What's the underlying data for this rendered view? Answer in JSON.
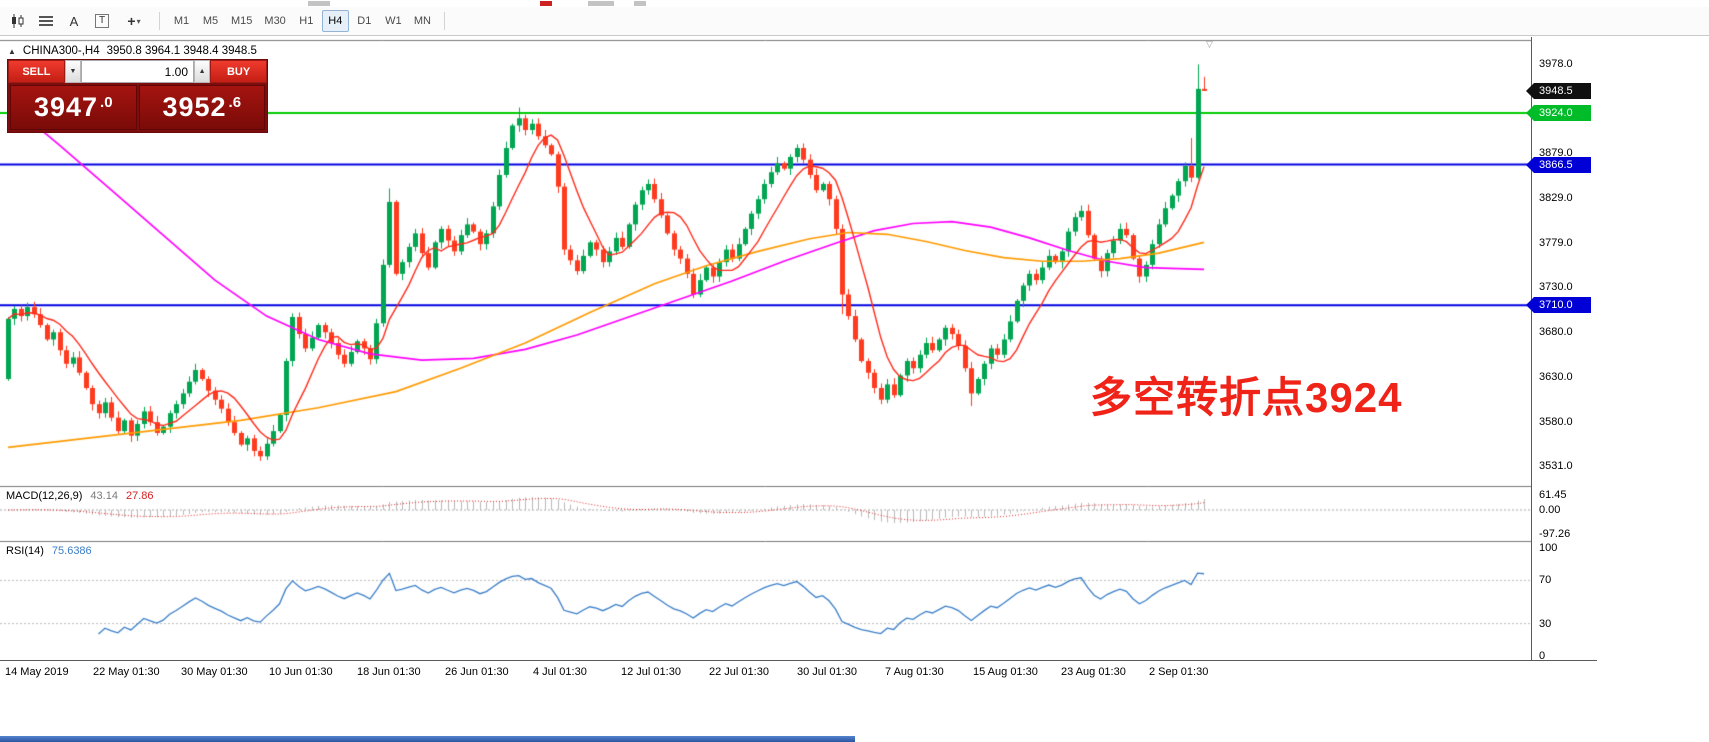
{
  "toolbar": {
    "timeframes": [
      "M1",
      "M5",
      "M15",
      "M30",
      "H1",
      "H4",
      "D1",
      "W1",
      "MN"
    ],
    "active_timeframe": "H4",
    "icon_glyphs": [
      "A",
      "T",
      "+",
      "▾"
    ]
  },
  "chart": {
    "collapse_icon": "▲",
    "symbol": "CHINA300-,H4",
    "ohlc": "3950.8 3964.1 3948.4 3948.5",
    "shift_marker": "▽"
  },
  "trade_panel": {
    "sell_label": "SELL",
    "buy_label": "BUY",
    "volume": "1.00",
    "vol_down_glyph": "▼",
    "vol_up_glyph": "▲",
    "sell_price_main": "3947",
    "sell_price_frac": ".0",
    "buy_price_main": "3952",
    "buy_price_frac": ".6"
  },
  "annotation": {
    "text": "多空转折点3924",
    "color": "#ef2318"
  },
  "price_axis": {
    "ticks": [
      "3978.0",
      "3879.0",
      "3829.0",
      "3779.0",
      "3730.0",
      "3680.0",
      "3630.0",
      "3580.0",
      "3531.0"
    ],
    "badges": {
      "current": "3948.5",
      "level_green": "3924.0",
      "level_blue_1": "3866.5",
      "level_blue_2": "3710.0"
    }
  },
  "hlines": [
    {
      "price": 3924.0,
      "color": "#00cc00"
    },
    {
      "price": 3866.5,
      "color": "#0000e0"
    },
    {
      "price": 3710.0,
      "color": "#0000e0"
    }
  ],
  "indicators": {
    "macd": {
      "label": "MACD(12,26,9)",
      "value_main": "43.14",
      "value_signal": "27.86",
      "axis": [
        "61.45",
        "0.00",
        "-97.26"
      ],
      "axis_values": [
        61.45,
        0,
        -97.26
      ]
    },
    "rsi": {
      "label": "RSI(14)",
      "value": "75.6386",
      "period": 14,
      "axis": [
        "100",
        "70",
        "30",
        "0"
      ],
      "axis_values": [
        100,
        70,
        30,
        0
      ],
      "levels": [
        70,
        30
      ]
    }
  },
  "time_axis": {
    "labels": [
      "14 May 2019",
      "22 May 01:30",
      "30 May 01:30",
      "10 Jun 01:30",
      "18 Jun 01:30",
      "26 Jun 01:30",
      "4 Jul 01:30",
      "12 Jul 01:30",
      "22 Jul 01:30",
      "30 Jul 01:30",
      "7 Aug 01:30",
      "15 Aug 01:30",
      "23 Aug 01:30",
      "2 Sep 01:30"
    ]
  },
  "chart_data": {
    "type": "candlestick",
    "symbol": "CHINA300-",
    "timeframe": "H4",
    "current_bar": {
      "open": 3950.8,
      "high": 3964.1,
      "low": 3948.4,
      "close": 3948.5
    },
    "price_range": {
      "min": 3509,
      "max": 4004
    },
    "colors": {
      "up": "#00a651",
      "down": "#ff3b1f",
      "macd_hist": "#b9b9b9",
      "macd_signal": "#e02020",
      "rsi_line": "#3a7ec8"
    },
    "open_first": 3628,
    "closes": [
      3695,
      3706,
      3698,
      3708,
      3700,
      3688,
      3672,
      3680,
      3660,
      3645,
      3652,
      3635,
      3618,
      3600,
      3590,
      3602,
      3585,
      3570,
      3582,
      3565,
      3578,
      3592,
      3580,
      3568,
      3575,
      3590,
      3600,
      3612,
      3625,
      3638,
      3628,
      3615,
      3605,
      3595,
      3580,
      3568,
      3555,
      3562,
      3548,
      3542,
      3556,
      3570,
      3588,
      3648,
      3697,
      3678,
      3662,
      3674,
      3688,
      3680,
      3668,
      3655,
      3645,
      3658,
      3670,
      3662,
      3650,
      3690,
      3755,
      3825,
      3745,
      3758,
      3775,
      3790,
      3768,
      3752,
      3780,
      3795,
      3782,
      3770,
      3788,
      3800,
      3792,
      3778,
      3790,
      3820,
      3855,
      3885,
      3910,
      3918,
      3905,
      3912,
      3898,
      3888,
      3878,
      3842,
      3772,
      3760,
      3748,
      3765,
      3780,
      3772,
      3758,
      3770,
      3785,
      3775,
      3800,
      3822,
      3838,
      3845,
      3828,
      3810,
      3790,
      3772,
      3762,
      3745,
      3722,
      3738,
      3752,
      3742,
      3758,
      3772,
      3762,
      3778,
      3795,
      3812,
      3828,
      3845,
      3858,
      3868,
      3862,
      3875,
      3885,
      3872,
      3855,
      3838,
      3845,
      3828,
      3795,
      3722,
      3698,
      3672,
      3648,
      3635,
      3618,
      3605,
      3622,
      3610,
      3632,
      3648,
      3640,
      3655,
      3668,
      3660,
      3672,
      3685,
      3678,
      3665,
      3640,
      3612,
      3628,
      3645,
      3662,
      3655,
      3672,
      3692,
      3715,
      3732,
      3745,
      3738,
      3752,
      3765,
      3758,
      3770,
      3792,
      3808,
      3815,
      3788,
      3762,
      3748,
      3768,
      3782,
      3795,
      3788,
      3762,
      3742,
      3755,
      3778,
      3800,
      3818,
      3832,
      3848,
      3865,
      3852,
      3950.8,
      3948.5
    ],
    "special_bars": {
      "59": {
        "high": 3840
      },
      "79": {
        "high": 3930
      },
      "129": {
        "low": 3700
      },
      "149": {
        "low": 3598
      },
      "183": {
        "high": 3896
      },
      "184": {
        "high": 3978,
        "low": 3850
      },
      "185": {
        "open": 3950.8,
        "high": 3964.1,
        "low": 3948.4,
        "close": 3948.5
      }
    },
    "ma_lines": [
      {
        "name": "ma-slow-magenta",
        "color": "#ff00ff",
        "points": [
          [
            0,
            3936
          ],
          [
            8,
            3888
          ],
          [
            16,
            3838
          ],
          [
            24,
            3788
          ],
          [
            32,
            3738
          ],
          [
            40,
            3698
          ],
          [
            48,
            3672
          ],
          [
            56,
            3656
          ],
          [
            64,
            3649
          ],
          [
            72,
            3651
          ],
          [
            80,
            3661
          ],
          [
            88,
            3677
          ],
          [
            96,
            3697
          ],
          [
            104,
            3717
          ],
          [
            112,
            3737
          ],
          [
            120,
            3759
          ],
          [
            128,
            3779
          ],
          [
            134,
            3793
          ],
          [
            140,
            3801
          ],
          [
            146,
            3803
          ],
          [
            152,
            3797
          ],
          [
            158,
            3785
          ],
          [
            164,
            3771
          ],
          [
            170,
            3759
          ],
          [
            176,
            3752
          ],
          [
            185,
            3750
          ]
        ]
      },
      {
        "name": "ma-mid-orange",
        "color": "#ff9a00",
        "points": [
          [
            0,
            3552
          ],
          [
            12,
            3562
          ],
          [
            24,
            3572
          ],
          [
            36,
            3582
          ],
          [
            48,
            3596
          ],
          [
            60,
            3614
          ],
          [
            70,
            3640
          ],
          [
            80,
            3668
          ],
          [
            90,
            3702
          ],
          [
            100,
            3734
          ],
          [
            108,
            3754
          ],
          [
            116,
            3770
          ],
          [
            124,
            3784
          ],
          [
            130,
            3791
          ],
          [
            136,
            3789
          ],
          [
            142,
            3781
          ],
          [
            148,
            3771
          ],
          [
            154,
            3763
          ],
          [
            160,
            3759
          ],
          [
            166,
            3759
          ],
          [
            172,
            3762
          ],
          [
            178,
            3768
          ],
          [
            185,
            3780
          ]
        ]
      },
      {
        "name": "ma-fast-red",
        "color": "#ff2a1a",
        "period": 8
      }
    ]
  }
}
